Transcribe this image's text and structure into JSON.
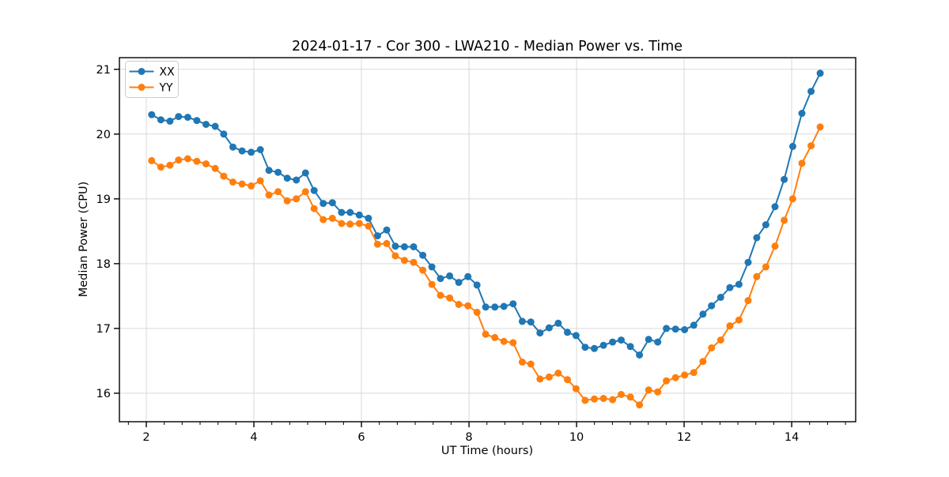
{
  "chart_data": {
    "type": "line",
    "title": "2024-01-17 - Cor 300 - LWA210 - Median Power vs. Time",
    "xlabel": "UT Time (hours)",
    "ylabel": "Median Power (CPU)",
    "xlim": [
      1.5,
      15.19
    ],
    "ylim": [
      15.56,
      21.18
    ],
    "x_ticks": [
      2,
      4,
      6,
      8,
      10,
      12,
      14
    ],
    "x_tick_labels": [
      "2",
      "4",
      "6",
      "8",
      "10",
      "12",
      "14"
    ],
    "y_ticks": [
      16,
      17,
      18,
      19,
      20,
      21
    ],
    "y_tick_labels": [
      "16",
      "17",
      "18",
      "19",
      "20",
      "21"
    ],
    "x_minor_tick_step": 0.33333,
    "grid": true,
    "legend_position": "upper left",
    "x": [
      2.1,
      2.27,
      2.44,
      2.6,
      2.77,
      2.94,
      3.11,
      3.28,
      3.44,
      3.61,
      3.78,
      3.95,
      4.12,
      4.28,
      4.45,
      4.62,
      4.79,
      4.96,
      5.12,
      5.29,
      5.46,
      5.63,
      5.79,
      5.96,
      6.13,
      6.3,
      6.47,
      6.63,
      6.8,
      6.97,
      7.14,
      7.31,
      7.47,
      7.64,
      7.81,
      7.98,
      8.15,
      8.31,
      8.48,
      8.65,
      8.82,
      8.99,
      9.15,
      9.32,
      9.49,
      9.66,
      9.83,
      9.99,
      10.16,
      10.33,
      10.5,
      10.67,
      10.83,
      11.0,
      11.17,
      11.34,
      11.51,
      11.67,
      11.84,
      12.01,
      12.18,
      12.35,
      12.51,
      12.68,
      12.85,
      13.02,
      13.19,
      13.35,
      13.52,
      13.69,
      13.86,
      14.02,
      14.19,
      14.36,
      14.53
    ],
    "series": [
      {
        "name": "XX",
        "color": "#1f77b4",
        "marker": "circle",
        "values": [
          20.3,
          20.22,
          20.2,
          20.27,
          20.26,
          20.21,
          20.15,
          20.12,
          20.0,
          19.8,
          19.74,
          19.72,
          19.76,
          19.44,
          19.41,
          19.32,
          19.29,
          19.4,
          19.13,
          18.93,
          18.94,
          18.79,
          18.79,
          18.75,
          18.7,
          18.43,
          18.52,
          18.27,
          18.26,
          18.26,
          18.13,
          17.95,
          17.77,
          17.81,
          17.71,
          17.8,
          17.67,
          17.33,
          17.33,
          17.34,
          17.38,
          17.11,
          17.1,
          16.93,
          17.01,
          17.08,
          16.94,
          16.89,
          16.71,
          16.69,
          16.74,
          16.79,
          16.82,
          16.72,
          16.59,
          16.83,
          16.79,
          17.0,
          16.99,
          16.98,
          17.05,
          17.22,
          17.35,
          17.48,
          17.63,
          17.68,
          18.02,
          18.4,
          18.6,
          18.88,
          19.3,
          19.81,
          20.32,
          20.66,
          20.94
        ]
      },
      {
        "name": "YY",
        "color": "#ff7f0e",
        "marker": "circle",
        "values": [
          19.59,
          19.49,
          19.52,
          19.6,
          19.62,
          19.58,
          19.54,
          19.47,
          19.35,
          19.26,
          19.23,
          19.2,
          19.28,
          19.06,
          19.11,
          18.97,
          19.0,
          19.11,
          18.85,
          18.68,
          18.7,
          18.62,
          18.61,
          18.62,
          18.58,
          18.3,
          18.31,
          18.12,
          18.05,
          18.02,
          17.9,
          17.68,
          17.51,
          17.47,
          17.37,
          17.35,
          17.25,
          16.91,
          16.86,
          16.8,
          16.78,
          16.48,
          16.45,
          16.22,
          16.25,
          16.31,
          16.21,
          16.07,
          15.89,
          15.91,
          15.92,
          15.9,
          15.98,
          15.94,
          15.82,
          16.05,
          16.02,
          16.19,
          16.24,
          16.28,
          16.32,
          16.49,
          16.7,
          16.82,
          17.04,
          17.13,
          17.43,
          17.8,
          17.95,
          18.27,
          18.67,
          19.0,
          19.55,
          19.82,
          20.11
        ]
      }
    ]
  },
  "legend": {
    "items": [
      {
        "label": "XX",
        "color": "#1f77b4"
      },
      {
        "label": "YY",
        "color": "#ff7f0e"
      }
    ]
  },
  "style": {
    "grid_color": "#d9d9d9",
    "spine_color": "#000000",
    "background": "#ffffff",
    "legend_border": "#cccccc"
  }
}
